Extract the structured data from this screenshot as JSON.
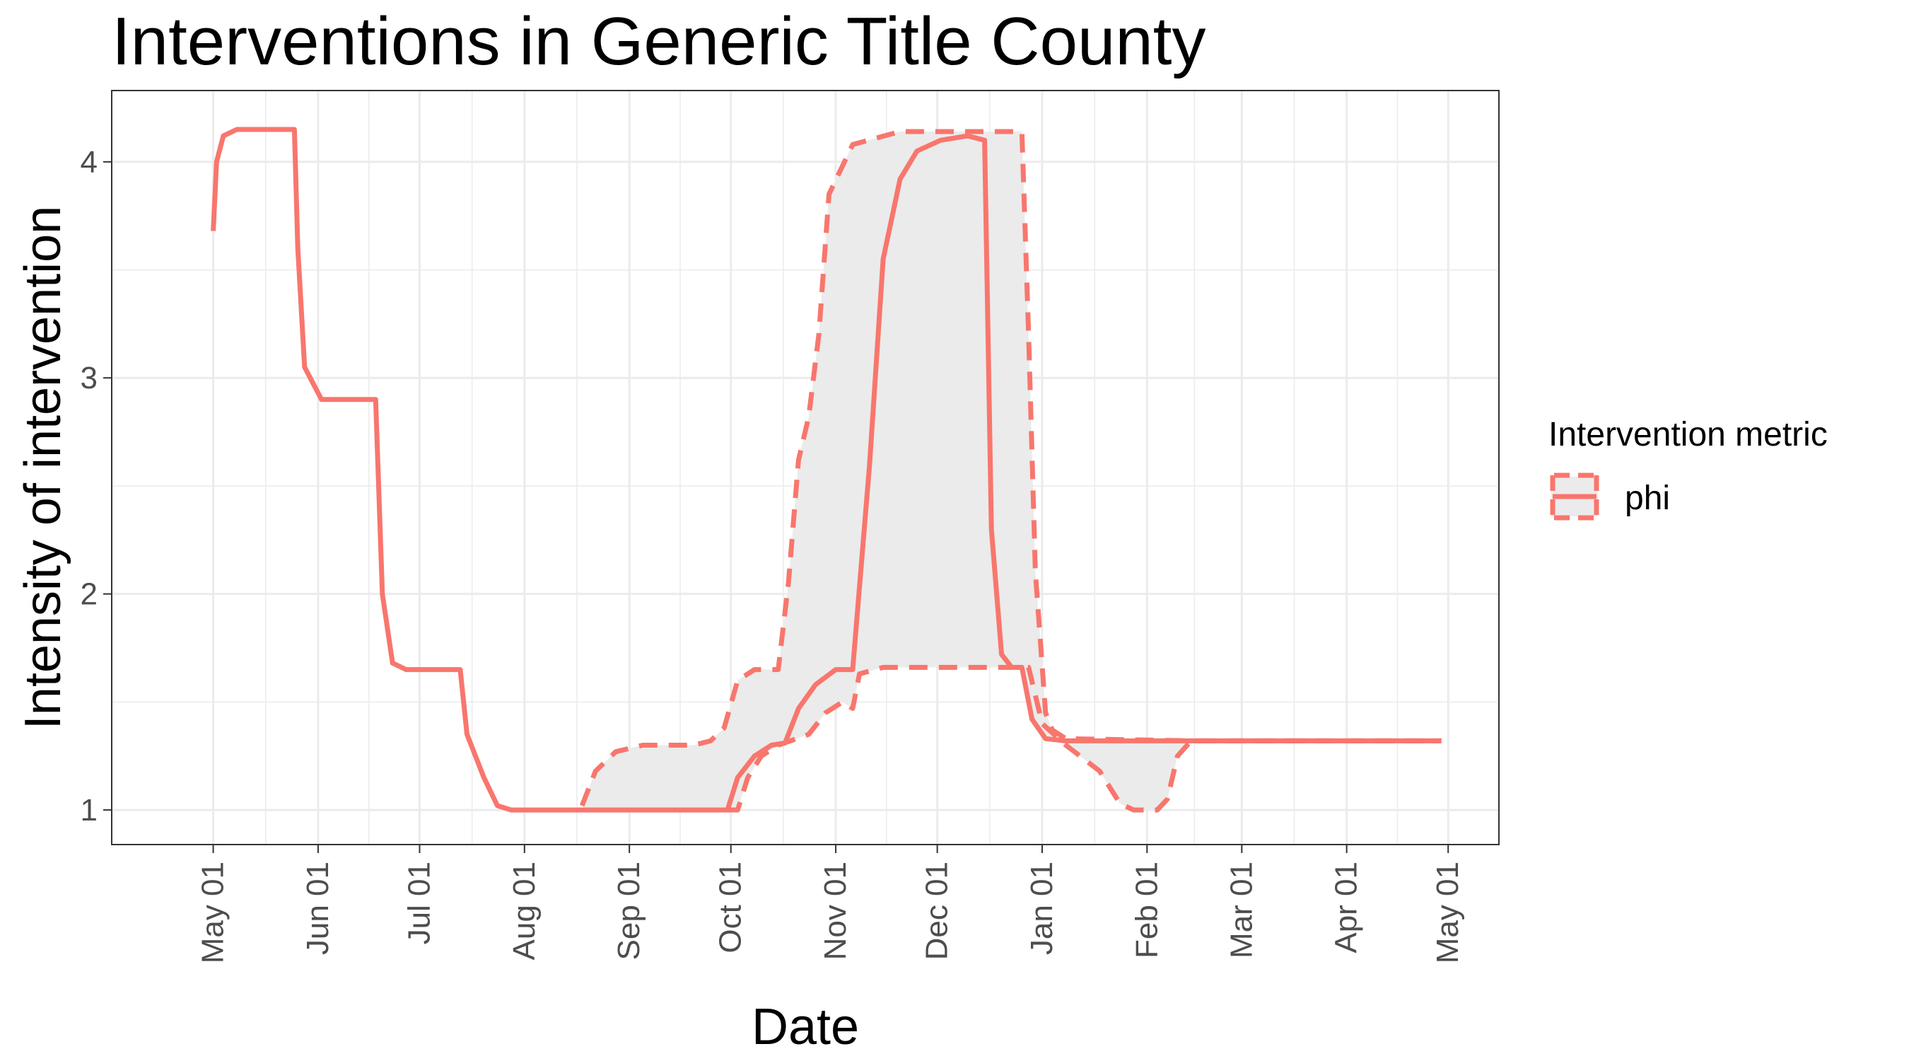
{
  "title": "Interventions in Generic Title County",
  "chart_data": {
    "type": "line",
    "title": "Interventions in Generic Title County",
    "xlabel": "Date",
    "ylabel": "Intensity of intervention",
    "x_axis_type": "date",
    "xlim": [
      "2020-04-01",
      "2021-05-16"
    ],
    "ylim": [
      0.84,
      4.33
    ],
    "x_ticks": [
      {
        "date": "2020-05-01",
        "label": "May 01"
      },
      {
        "date": "2020-06-01",
        "label": "Jun 01"
      },
      {
        "date": "2020-07-01",
        "label": "Jul 01"
      },
      {
        "date": "2020-08-01",
        "label": "Aug 01"
      },
      {
        "date": "2020-09-01",
        "label": "Sep 01"
      },
      {
        "date": "2020-10-01",
        "label": "Oct 01"
      },
      {
        "date": "2020-11-01",
        "label": "Nov 01"
      },
      {
        "date": "2020-12-01",
        "label": "Dec 01"
      },
      {
        "date": "2021-01-01",
        "label": "Jan 01"
      },
      {
        "date": "2021-02-01",
        "label": "Feb 01"
      },
      {
        "date": "2021-03-01",
        "label": "Mar 01"
      },
      {
        "date": "2021-04-01",
        "label": "Apr 01"
      },
      {
        "date": "2021-05-01",
        "label": "May 01"
      }
    ],
    "y_ticks": [
      1,
      2,
      3,
      4
    ],
    "grid": true,
    "legend": {
      "title": "Intervention metric",
      "position": "right",
      "entries": [
        "phi"
      ]
    },
    "colors": {
      "line": "#F8766D",
      "ribbon": "#EBEBEB",
      "grid": "#EBEBEB",
      "panel_border": "#333333"
    },
    "series": [
      {
        "name": "phi",
        "role": "median",
        "style": "solid",
        "points": [
          [
            "2020-05-01",
            3.68
          ],
          [
            "2020-05-02",
            4.0
          ],
          [
            "2020-05-04",
            4.12
          ],
          [
            "2020-05-08",
            4.15
          ],
          [
            "2020-05-25",
            4.15
          ],
          [
            "2020-05-26",
            3.6
          ],
          [
            "2020-05-28",
            3.05
          ],
          [
            "2020-06-02",
            2.9
          ],
          [
            "2020-06-18",
            2.9
          ],
          [
            "2020-06-20",
            2.0
          ],
          [
            "2020-06-23",
            1.68
          ],
          [
            "2020-06-27",
            1.65
          ],
          [
            "2020-07-13",
            1.65
          ],
          [
            "2020-07-15",
            1.35
          ],
          [
            "2020-07-20",
            1.15
          ],
          [
            "2020-07-24",
            1.02
          ],
          [
            "2020-07-28",
            1.0
          ],
          [
            "2020-09-30",
            1.0
          ],
          [
            "2020-10-03",
            1.15
          ],
          [
            "2020-10-08",
            1.25
          ],
          [
            "2020-10-13",
            1.3
          ],
          [
            "2020-10-17",
            1.31
          ],
          [
            "2020-10-21",
            1.47
          ],
          [
            "2020-10-26",
            1.58
          ],
          [
            "2020-11-01",
            1.65
          ],
          [
            "2020-11-06",
            1.65
          ],
          [
            "2020-11-11",
            2.6
          ],
          [
            "2020-11-15",
            3.55
          ],
          [
            "2020-11-20",
            3.92
          ],
          [
            "2020-11-25",
            4.05
          ],
          [
            "2020-12-02",
            4.1
          ],
          [
            "2020-12-10",
            4.12
          ],
          [
            "2020-12-15",
            4.1
          ],
          [
            "2020-12-17",
            2.3
          ],
          [
            "2020-12-20",
            1.72
          ],
          [
            "2020-12-23",
            1.66
          ],
          [
            "2020-12-26",
            1.66
          ],
          [
            "2020-12-29",
            1.42
          ],
          [
            "2021-01-02",
            1.33
          ],
          [
            "2021-01-08",
            1.32
          ],
          [
            "2021-04-29",
            1.32
          ]
        ]
      },
      {
        "name": "phi",
        "role": "upper bound",
        "style": "dashed",
        "points": [
          [
            "2020-08-18",
            1.02
          ],
          [
            "2020-08-22",
            1.18
          ],
          [
            "2020-08-28",
            1.27
          ],
          [
            "2020-09-05",
            1.3
          ],
          [
            "2020-09-20",
            1.3
          ],
          [
            "2020-09-25",
            1.32
          ],
          [
            "2020-09-29",
            1.38
          ],
          [
            "2020-10-03",
            1.6
          ],
          [
            "2020-10-08",
            1.65
          ],
          [
            "2020-10-15",
            1.65
          ],
          [
            "2020-10-18",
            2.05
          ],
          [
            "2020-10-21",
            2.62
          ],
          [
            "2020-10-24",
            2.82
          ],
          [
            "2020-10-27",
            3.2
          ],
          [
            "2020-10-30",
            3.85
          ],
          [
            "2020-11-06",
            4.08
          ],
          [
            "2020-11-20",
            4.14
          ],
          [
            "2020-12-26",
            4.14
          ],
          [
            "2020-12-28",
            3.2
          ],
          [
            "2020-12-30",
            2.1
          ],
          [
            "2021-01-02",
            1.45
          ],
          [
            "2021-01-04",
            1.37
          ],
          [
            "2021-01-08",
            1.33
          ],
          [
            "2021-02-15",
            1.32
          ],
          [
            "2021-04-29",
            1.32
          ]
        ]
      },
      {
        "name": "phi",
        "role": "lower bound",
        "style": "dashed",
        "points": [
          [
            "2020-09-30",
            1.0
          ],
          [
            "2020-10-03",
            1.0
          ],
          [
            "2020-10-06",
            1.15
          ],
          [
            "2020-10-10",
            1.25
          ],
          [
            "2020-10-15",
            1.3
          ],
          [
            "2020-10-24",
            1.35
          ],
          [
            "2020-10-29",
            1.45
          ],
          [
            "2020-11-03",
            1.5
          ],
          [
            "2020-11-06",
            1.47
          ],
          [
            "2020-11-08",
            1.63
          ],
          [
            "2020-11-15",
            1.66
          ],
          [
            "2020-12-28",
            1.66
          ],
          [
            "2021-01-01",
            1.4
          ],
          [
            "2021-01-08",
            1.3
          ],
          [
            "2021-01-18",
            1.18
          ],
          [
            "2021-01-24",
            1.03
          ],
          [
            "2021-01-28",
            1.0
          ],
          [
            "2021-02-04",
            1.0
          ],
          [
            "2021-02-07",
            1.05
          ],
          [
            "2021-02-10",
            1.25
          ],
          [
            "2021-02-14",
            1.32
          ],
          [
            "2021-04-29",
            1.32
          ]
        ]
      }
    ]
  }
}
